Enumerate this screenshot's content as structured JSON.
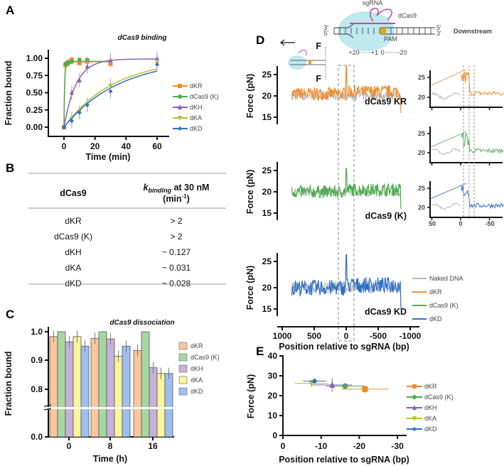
{
  "panels": {
    "A": "A",
    "B": "B",
    "C": "C",
    "D": "D",
    "E": "E"
  },
  "colors": {
    "dKR": "#f28a2a",
    "dCas9 (K)": "#4cae4c",
    "dKH": "#8e5fb5",
    "dKA": "#b8c02a",
    "dKD": "#2f6fc6",
    "naked": "#b5b5b5"
  },
  "chart_data": [
    {
      "id": "A",
      "type": "line",
      "title": "dCas9 binding",
      "xlabel": "Time (min)",
      "ylabel": "Fraction bound",
      "xlim": [
        -5,
        65
      ],
      "ylim": [
        -0.05,
        1.1
      ],
      "xticks": [
        "0",
        "20",
        "40",
        "60"
      ],
      "yticks": [
        "0.00",
        "0.25",
        "0.50",
        "0.75",
        "1.00"
      ],
      "legend_position": "right",
      "series": [
        {
          "name": "dKR",
          "marker": "square",
          "x": [
            0,
            1,
            2,
            3,
            5,
            10,
            15,
            30
          ],
          "y": [
            0,
            0.9,
            0.92,
            0.95,
            0.98,
            0.93,
            0.95,
            0.92
          ]
        },
        {
          "name": "dCas9 (K)",
          "marker": "circle",
          "x": [
            0,
            1,
            2,
            3,
            5,
            10,
            15
          ],
          "y": [
            0,
            0.92,
            0.93,
            0.93,
            0.95,
            0.98,
            0.98
          ]
        },
        {
          "name": "dKH",
          "marker": "triangle-up",
          "x": [
            0,
            5,
            10,
            15,
            30,
            60
          ],
          "y": [
            0,
            0.5,
            0.68,
            0.88,
            0.97,
            1.0
          ]
        },
        {
          "name": "dKA",
          "marker": "triangle-down",
          "x": [
            0,
            5,
            10,
            15,
            30,
            60
          ],
          "y": [
            0,
            0.12,
            0.22,
            0.33,
            0.6,
            0.93
          ]
        },
        {
          "name": "dKD",
          "marker": "diamond",
          "x": [
            0,
            5,
            10,
            15,
            30,
            60
          ],
          "y": [
            0,
            0.09,
            0.21,
            0.32,
            0.52,
            0.91
          ]
        }
      ]
    },
    {
      "id": "B",
      "type": "table",
      "headers": [
        "dCas9",
        "k",
        "binding",
        " at 30 nM",
        "(min",
        "-1",
        ")"
      ],
      "rows": [
        [
          "dKR",
          "> 2"
        ],
        [
          "dCas9 (K)",
          "> 2"
        ],
        [
          "dKH",
          "~ 0.127"
        ],
        [
          "dKA",
          "~ 0.031"
        ],
        [
          "dKD",
          "~ 0.028"
        ]
      ]
    },
    {
      "id": "C",
      "type": "bar",
      "title": "dCas9 dissociation",
      "xlabel": "Time (h)",
      "ylabel": "Fraction bound",
      "categories": [
        "0",
        "8",
        "16"
      ],
      "yticks": [
        "0.0",
        "0.8",
        "0.9",
        "1.0"
      ],
      "broken_axis": [
        0,
        0.8
      ],
      "legend_position": "right",
      "series": [
        {
          "name": "dKR",
          "values": [
            0.983,
            0.977,
            0.935
          ]
        },
        {
          "name": "dCas9 (K)",
          "values": [
            1.0,
            1.0,
            1.0
          ]
        },
        {
          "name": "dKH",
          "values": [
            0.965,
            0.975,
            0.875
          ]
        },
        {
          "name": "dKA",
          "values": [
            0.983,
            0.915,
            0.855
          ]
        },
        {
          "name": "dKD",
          "values": [
            0.95,
            0.95,
            0.855
          ]
        }
      ]
    },
    {
      "id": "D",
      "type": "line",
      "xlabel": "Position relative to sgRNA (bp)",
      "ylabel": "Force (pN)",
      "xticks": [
        "1000",
        "500",
        "0",
        "-500",
        "-1000"
      ],
      "yticks": [
        "15",
        "20",
        "25"
      ],
      "inset_xticks": [
        "50",
        "0",
        "-50"
      ],
      "inset_yticks": [
        "20",
        "25"
      ],
      "traces": [
        {
          "name": "dCas9 KR",
          "peak_force": 27,
          "baseline_force": 20.5
        },
        {
          "name": "dCas9 (K)",
          "peak_force": 25.5,
          "baseline_force": 20
        },
        {
          "name": "dCas9 KD",
          "peak_force": 26.3,
          "baseline_force": 20
        }
      ],
      "legend": [
        "Naked DNA",
        "dKR",
        "dCas9 (K)",
        "dKD"
      ],
      "schematic": {
        "sgRNA": "sgRNA",
        "dCas9": "dCas9",
        "pam": "PAM",
        "downstream": "Downstream",
        "ends_left": [
          "3'",
          "5'"
        ],
        "ends_right": [
          "5'",
          "3'"
        ],
        "positions": [
          "+20",
          "+1",
          "0",
          "-20"
        ],
        "force": "F"
      }
    },
    {
      "id": "E",
      "type": "scatter",
      "xlabel": "Position relative to sgRNA (bp)",
      "ylabel": "Force (pN)",
      "xlim": [
        0,
        -33
      ],
      "ylim": [
        0,
        40
      ],
      "xticks": [
        "0",
        "-10",
        "-20",
        "-30"
      ],
      "yticks": [
        "0",
        "10",
        "20",
        "30",
        "40"
      ],
      "legend_position": "right",
      "series": [
        {
          "name": "dKR",
          "x": -21.5,
          "y": 23.3,
          "xerr": 6.2,
          "yerr": 2
        },
        {
          "name": "dCas9 (K)",
          "x": -16.3,
          "y": 24.8,
          "xerr": 5,
          "yerr": 1
        },
        {
          "name": "dKH",
          "x": -12.9,
          "y": 25.4,
          "xerr": 5.2,
          "yerr": 3.5
        },
        {
          "name": "dKA",
          "x": -7.5,
          "y": 26.2,
          "xerr": 4.4,
          "yerr": 2
        },
        {
          "name": "dKD",
          "x": -8.3,
          "y": 27.3,
          "xerr": 3,
          "yerr": 1
        }
      ]
    }
  ]
}
